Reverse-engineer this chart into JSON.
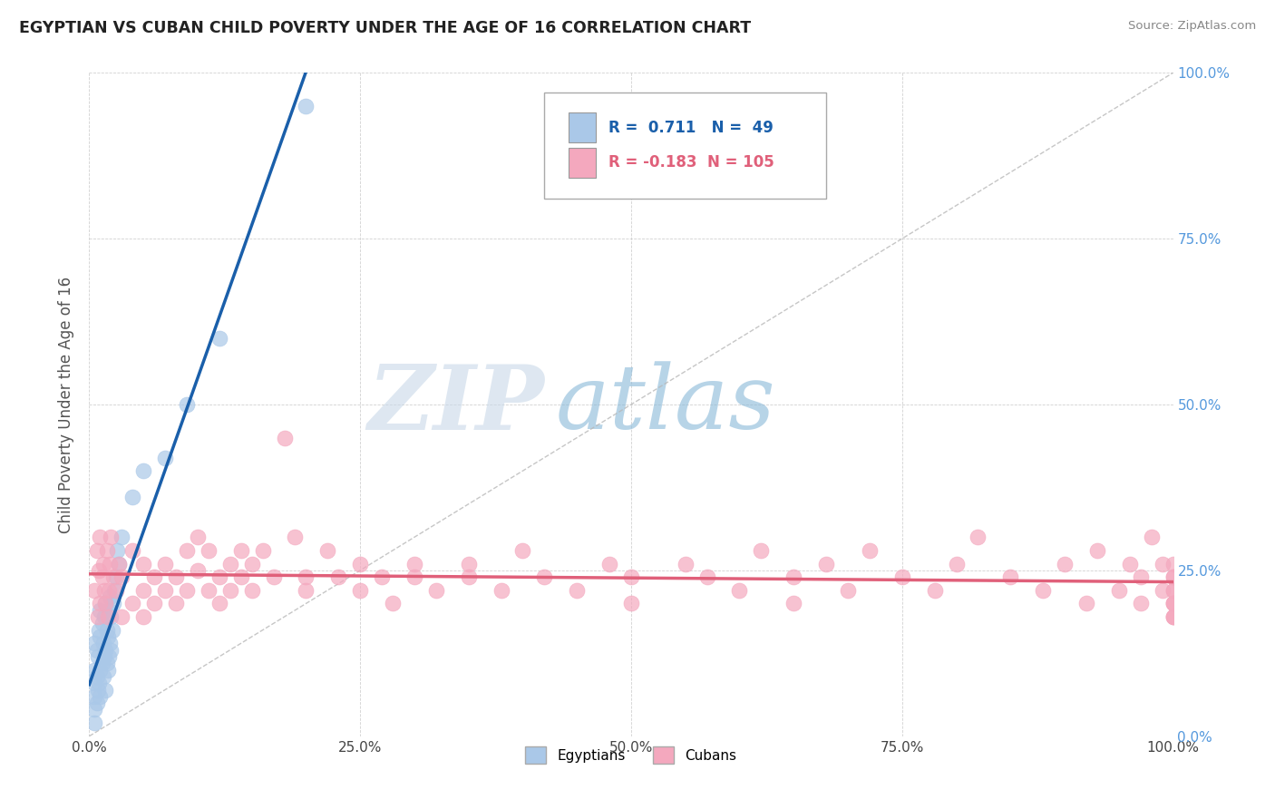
{
  "title": "EGYPTIAN VS CUBAN CHILD POVERTY UNDER THE AGE OF 16 CORRELATION CHART",
  "source": "Source: ZipAtlas.com",
  "ylabel": "Child Poverty Under the Age of 16",
  "xlim": [
    0,
    1.0
  ],
  "ylim": [
    0,
    1.0
  ],
  "xticks": [
    0.0,
    0.25,
    0.5,
    0.75,
    1.0
  ],
  "yticks": [
    0.0,
    0.25,
    0.5,
    0.75,
    1.0
  ],
  "xticklabels": [
    "0.0%",
    "25.0%",
    "50.0%",
    "75.0%",
    "100.0%"
  ],
  "yticklabels_right": [
    "0.0%",
    "25.0%",
    "50.0%",
    "75.0%",
    "100.0%"
  ],
  "egyptian_color": "#aac8e8",
  "cuban_color": "#f4a8be",
  "egyptian_line_color": "#1a5faa",
  "cuban_line_color": "#e0607a",
  "ref_line_color": "#b8b8b8",
  "background_color": "#ffffff",
  "watermark_zip": "ZIP",
  "watermark_atlas": "atlas",
  "watermark_zip_color": "#c8d8e8",
  "watermark_atlas_color": "#88b8d8",
  "legend_R_egyptian": "0.711",
  "legend_N_egyptian": "49",
  "legend_R_cuban": "-0.183",
  "legend_N_cuban": "105",
  "eg_x": [
    0.005,
    0.005,
    0.005,
    0.005,
    0.005,
    0.005,
    0.007,
    0.007,
    0.007,
    0.008,
    0.008,
    0.009,
    0.009,
    0.01,
    0.01,
    0.01,
    0.01,
    0.012,
    0.012,
    0.013,
    0.013,
    0.014,
    0.014,
    0.015,
    0.015,
    0.015,
    0.016,
    0.016,
    0.017,
    0.017,
    0.018,
    0.018,
    0.019,
    0.019,
    0.02,
    0.02,
    0.021,
    0.022,
    0.023,
    0.025,
    0.026,
    0.027,
    0.03,
    0.04,
    0.05,
    0.07,
    0.09,
    0.12,
    0.2
  ],
  "eg_y": [
    0.02,
    0.04,
    0.06,
    0.08,
    0.1,
    0.14,
    0.05,
    0.09,
    0.13,
    0.07,
    0.12,
    0.08,
    0.16,
    0.06,
    0.1,
    0.15,
    0.19,
    0.11,
    0.17,
    0.09,
    0.14,
    0.12,
    0.18,
    0.07,
    0.13,
    0.2,
    0.11,
    0.16,
    0.1,
    0.15,
    0.12,
    0.19,
    0.14,
    0.21,
    0.13,
    0.18,
    0.16,
    0.2,
    0.22,
    0.24,
    0.28,
    0.26,
    0.3,
    0.36,
    0.4,
    0.42,
    0.5,
    0.6,
    0.95
  ],
  "cu_x": [
    0.005,
    0.007,
    0.008,
    0.009,
    0.01,
    0.01,
    0.012,
    0.013,
    0.014,
    0.015,
    0.016,
    0.017,
    0.018,
    0.019,
    0.02,
    0.022,
    0.025,
    0.027,
    0.03,
    0.03,
    0.04,
    0.04,
    0.05,
    0.05,
    0.05,
    0.06,
    0.06,
    0.07,
    0.07,
    0.08,
    0.08,
    0.09,
    0.09,
    0.1,
    0.1,
    0.11,
    0.11,
    0.12,
    0.12,
    0.13,
    0.13,
    0.14,
    0.14,
    0.15,
    0.15,
    0.16,
    0.17,
    0.18,
    0.19,
    0.2,
    0.2,
    0.22,
    0.23,
    0.25,
    0.25,
    0.27,
    0.28,
    0.3,
    0.3,
    0.32,
    0.35,
    0.35,
    0.38,
    0.4,
    0.42,
    0.45,
    0.48,
    0.5,
    0.5,
    0.55,
    0.57,
    0.6,
    0.62,
    0.65,
    0.65,
    0.68,
    0.7,
    0.72,
    0.75,
    0.78,
    0.8,
    0.82,
    0.85,
    0.88,
    0.9,
    0.92,
    0.93,
    0.95,
    0.96,
    0.97,
    0.97,
    0.98,
    0.99,
    0.99,
    1.0,
    1.0,
    1.0,
    1.0,
    1.0,
    1.0,
    1.0,
    1.0,
    1.0,
    1.0,
    1.0
  ],
  "cu_y": [
    0.22,
    0.28,
    0.18,
    0.25,
    0.3,
    0.2,
    0.24,
    0.26,
    0.22,
    0.2,
    0.28,
    0.18,
    0.22,
    0.26,
    0.3,
    0.24,
    0.22,
    0.26,
    0.18,
    0.24,
    0.2,
    0.28,
    0.22,
    0.26,
    0.18,
    0.24,
    0.2,
    0.26,
    0.22,
    0.24,
    0.2,
    0.28,
    0.22,
    0.25,
    0.3,
    0.22,
    0.28,
    0.24,
    0.2,
    0.26,
    0.22,
    0.28,
    0.24,
    0.22,
    0.26,
    0.28,
    0.24,
    0.45,
    0.3,
    0.24,
    0.22,
    0.28,
    0.24,
    0.22,
    0.26,
    0.24,
    0.2,
    0.26,
    0.24,
    0.22,
    0.26,
    0.24,
    0.22,
    0.28,
    0.24,
    0.22,
    0.26,
    0.24,
    0.2,
    0.26,
    0.24,
    0.22,
    0.28,
    0.24,
    0.2,
    0.26,
    0.22,
    0.28,
    0.24,
    0.22,
    0.26,
    0.3,
    0.24,
    0.22,
    0.26,
    0.2,
    0.28,
    0.22,
    0.26,
    0.2,
    0.24,
    0.3,
    0.22,
    0.26,
    0.18,
    0.24,
    0.2,
    0.22,
    0.26,
    0.2,
    0.24,
    0.18,
    0.22,
    0.2,
    0.18
  ]
}
